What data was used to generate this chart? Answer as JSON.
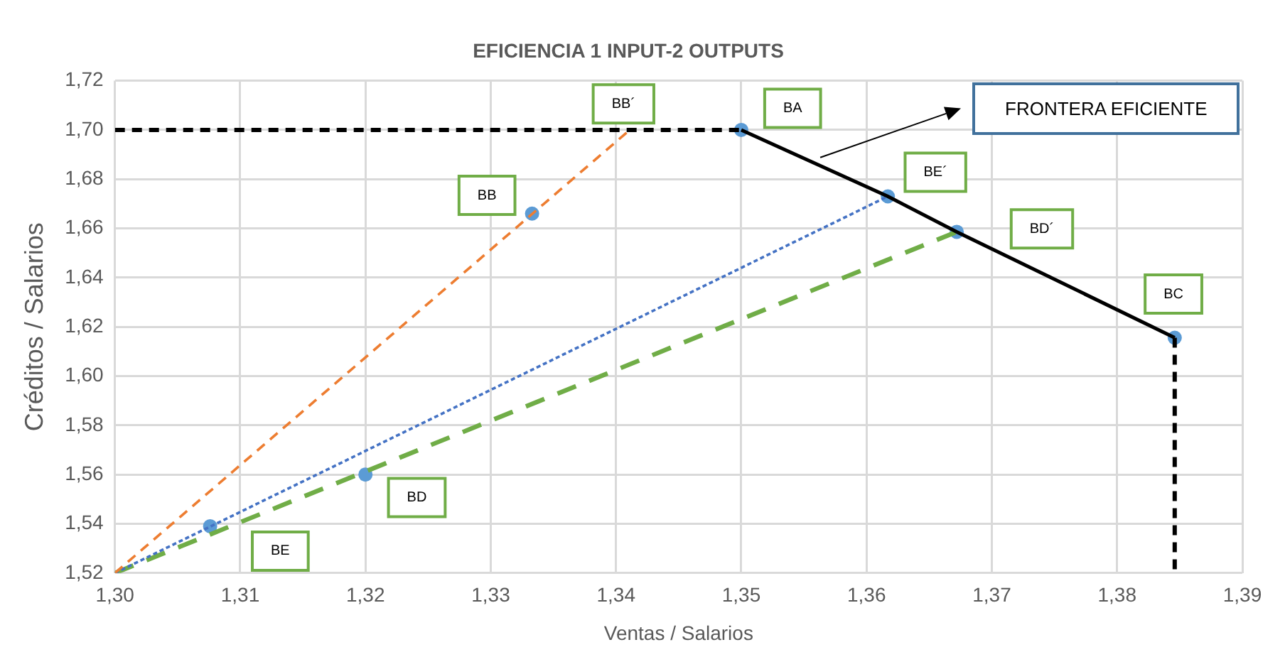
{
  "chart_data": {
    "type": "line",
    "title": "EFICIENCIA 1 INPUT-2 OUTPUTS",
    "xlabel": "Ventas / Salarios",
    "ylabel": "Créditos / Salarios",
    "xlim": [
      1.3,
      1.39
    ],
    "xticks": [
      {
        "value": 1.3,
        "label": "1,30"
      },
      {
        "value": 1.31,
        "label": "1,31"
      },
      {
        "value": 1.32,
        "label": "1,32"
      },
      {
        "value": 1.33,
        "label": "1,33"
      },
      {
        "value": 1.34,
        "label": "1,34"
      },
      {
        "value": 1.35,
        "label": "1,35"
      },
      {
        "value": 1.36,
        "label": "1,36"
      },
      {
        "value": 1.37,
        "label": "1,37"
      },
      {
        "value": 1.38,
        "label": "1,38"
      },
      {
        "value": 1.39,
        "label": "1,39"
      }
    ],
    "ylim": [
      1.52,
      1.72
    ],
    "yticks": [
      {
        "value": 1.52,
        "label": "1,52"
      },
      {
        "value": 1.54,
        "label": "1,54"
      },
      {
        "value": 1.56,
        "label": "1,56"
      },
      {
        "value": 1.58,
        "label": "1,58"
      },
      {
        "value": 1.6,
        "label": "1,60"
      },
      {
        "value": 1.62,
        "label": "1,62"
      },
      {
        "value": 1.64,
        "label": "1,64"
      },
      {
        "value": 1.66,
        "label": "1,66"
      },
      {
        "value": 1.68,
        "label": "1,68"
      },
      {
        "value": 1.7,
        "label": "1,70"
      },
      {
        "value": 1.72,
        "label": "1,72"
      }
    ],
    "grid": true,
    "legend": false,
    "series": [
      {
        "color": "#000000",
        "line_style": "dashed",
        "marker": "none",
        "x": [
          1.3,
          1.35
        ],
        "values": [
          1.7,
          1.7
        ]
      },
      {
        "color": "#000000",
        "line_style": "dashed",
        "marker": "none",
        "x": [
          1.3846,
          1.3846
        ],
        "values": [
          1.6156,
          1.52
        ]
      },
      {
        "color": "#000000",
        "line_style": "solid",
        "marker": "none",
        "x": [
          1.35,
          1.3617,
          1.3672,
          1.3846
        ],
        "values": [
          1.7,
          1.673,
          1.6586,
          1.6156
        ]
      },
      {
        "color": "#ed7d31",
        "line_style": "dashed",
        "marker": "none",
        "x": [
          1.3,
          1.3411
        ],
        "values": [
          1.52,
          1.7
        ]
      },
      {
        "color": "#4472c4",
        "line_style": "dotted",
        "marker": "none",
        "x": [
          1.3,
          1.3617
        ],
        "values": [
          1.52,
          1.673
        ]
      },
      {
        "color": "#70ad47",
        "line_style": "dashed",
        "marker": "none",
        "x": [
          1.3,
          1.3672
        ],
        "values": [
          1.52,
          1.6586
        ]
      },
      {
        "type": "scatter",
        "color": "#5b9bd5",
        "marker": "circle",
        "x": [
          1.3076,
          1.32,
          1.3333,
          1.35,
          1.3617,
          1.3672,
          1.3846
        ],
        "values": [
          1.539,
          1.56,
          1.666,
          1.7,
          1.673,
          1.6586,
          1.6156
        ]
      }
    ],
    "annotations": [
      {
        "text": "BB´",
        "x": 1.3406,
        "y": 1.7106
      },
      {
        "text": "BA",
        "x": 1.3541,
        "y": 1.7088
      },
      {
        "text": "BB",
        "x": 1.3297,
        "y": 1.6734
      },
      {
        "text": "BE´",
        "x": 1.3655,
        "y": 1.6828
      },
      {
        "text": "BD´",
        "x": 1.374,
        "y": 1.6598
      },
      {
        "text": "BC",
        "x": 1.3845,
        "y": 1.6333
      },
      {
        "text": "BD",
        "x": 1.3241,
        "y": 1.5507
      },
      {
        "text": "BE",
        "x": 1.3132,
        "y": 1.5289
      },
      "FRONTERA EFICIENTE"
    ]
  }
}
